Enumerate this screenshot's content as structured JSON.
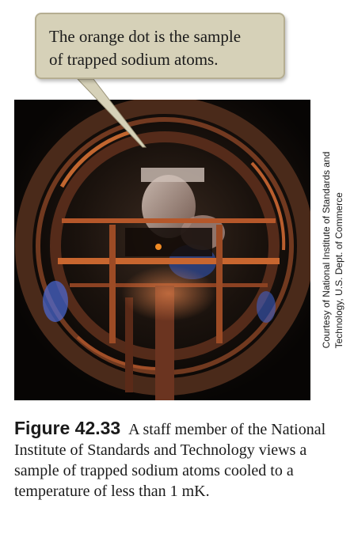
{
  "callout": {
    "line1": "The orange dot is the sample",
    "line2": "of trapped sodium atoms."
  },
  "credit": {
    "line1": "Courtesy of National Institute of Standards and",
    "line2": "Technology, U.S. Dept. of Commerce"
  },
  "caption": {
    "label": "Figure 42.33",
    "text": "A staff member of the National Institute of Standards and Technology views a sample of trapped sodium atoms cooled to a temperature of less than 1 mK."
  },
  "colors": {
    "callout_bg": "#d6d1b8",
    "sample_dot": "#f08a24",
    "copper": "#b5572a"
  }
}
